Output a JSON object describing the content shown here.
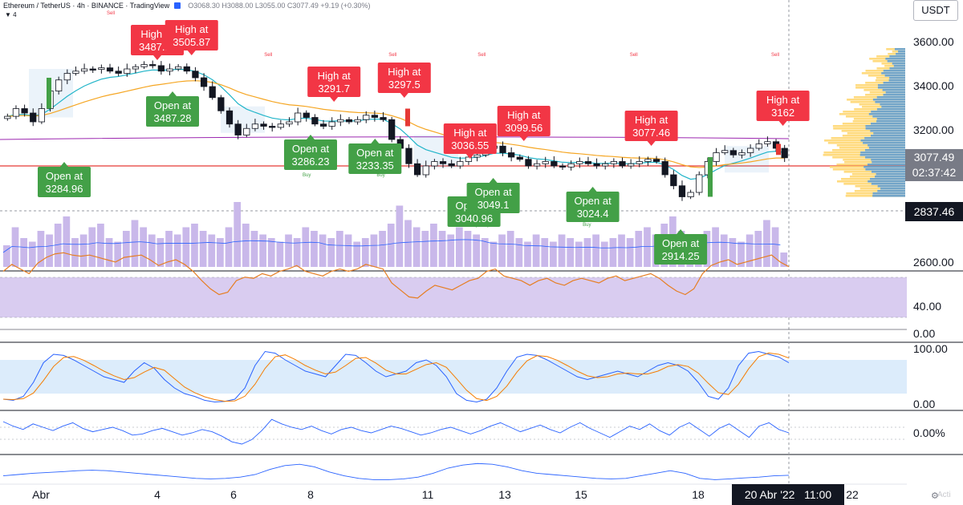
{
  "header": {
    "symbol": "Ethereum / TetherUS · 4h · BINANCE · TradingView",
    "ohlc": "O3068.30 H3088.00 L3055.00 C3077.49 +9.19 (+0.30%)",
    "indicator_count": "4"
  },
  "axis": {
    "currency": "USDT",
    "price_ticks": [
      "3600.00",
      "3400.00",
      "3200.00",
      "2600.00"
    ],
    "rsi_ticks": [
      "40.00",
      "0.00"
    ],
    "stoch_ticks": [
      "100.00",
      "0.00"
    ],
    "osc_tick": "0.00%",
    "last_price": "3077.49",
    "countdown": "02:37:42",
    "crosshair_price": "2837.46",
    "x_ticks": [
      "Abr",
      "4",
      "6",
      "8",
      "11",
      "13",
      "15",
      "18",
      "22"
    ],
    "current_date": "20 Abr '22",
    "current_time": "11:00",
    "watermark": "Acti"
  },
  "colors": {
    "up": "#26a69a",
    "down": "#ef5350",
    "high_label": "#f23645",
    "open_label": "#43a047",
    "ema_fast": "#22b5c9",
    "ema_slow": "#f5a623",
    "volume": "#c9b8ea",
    "rsi_band": "#d9ccf0",
    "stoch_band": "#dcecfb",
    "pane_line": "#2962ff"
  },
  "chart_data": {
    "type": "candlestick",
    "x_categories": [
      "Abr",
      "4",
      "6",
      "8",
      "11",
      "13",
      "15",
      "18",
      "22"
    ],
    "price_range": [
      2600,
      3650
    ],
    "last_close": 3077.49,
    "signals": [
      {
        "kind": "high",
        "label": "High at",
        "value": "3487.11",
        "x_pos": 1.0,
        "price": 3487.11
      },
      {
        "kind": "high",
        "label": "High at",
        "value": "3505.87",
        "x_pos": 1.45,
        "price": 3505.87
      },
      {
        "kind": "open",
        "label": "Open at",
        "value": "3284.96",
        "x_pos": 0.2,
        "price": 3284.96
      },
      {
        "kind": "open",
        "label": "Open at",
        "value": "3487.28",
        "x_pos": 1.2,
        "price": 3487.28
      },
      {
        "kind": "high",
        "label": "High at",
        "value": "3291.7",
        "x_pos": 3.2,
        "price": 3291.7
      },
      {
        "kind": "open",
        "label": "Open at",
        "value": "3286.23",
        "x_pos": 3.0,
        "price": 3286.23
      },
      {
        "kind": "open",
        "label": "Open at",
        "value": "3233.35",
        "x_pos": 3.55,
        "price": 3233.35
      },
      {
        "kind": "high",
        "label": "High at",
        "value": "3297.5",
        "x_pos": 3.8,
        "price": 3297.5
      },
      {
        "kind": "high",
        "label": "High at",
        "value": "3036.55",
        "x_pos": 4.55,
        "price": 3036.55
      },
      {
        "kind": "open",
        "label": "Open at",
        "value": "3040.96",
        "x_pos": 4.6,
        "price": 3040.96
      },
      {
        "kind": "open",
        "label": "Open at",
        "value": "3049.1",
        "x_pos": 4.85,
        "price": 3049.1
      },
      {
        "kind": "high",
        "label": "High at",
        "value": "3099.56",
        "x_pos": 5.25,
        "price": 3099.56
      },
      {
        "kind": "open",
        "label": "Open at",
        "value": "3024.4",
        "x_pos": 6.1,
        "price": 3024.4
      },
      {
        "kind": "high",
        "label": "High at",
        "value": "3077.46",
        "x_pos": 6.6,
        "price": 3077.46
      },
      {
        "kind": "open",
        "label": "Open at",
        "value": "2914.25",
        "x_pos": 6.85,
        "price": 2914.25
      },
      {
        "kind": "high",
        "label": "High at",
        "value": "3162",
        "x_pos": 7.55,
        "price": 3162
      }
    ],
    "sell_markers": [
      0.6,
      2.45,
      3.7,
      4.7,
      6.45,
      7.5
    ],
    "buy_markers": [
      2.95,
      3.6,
      4.6,
      4.75,
      6.05
    ],
    "marker_text": {
      "sell": "Sell",
      "buy": "Buy"
    },
    "close_series": [
      3265,
      3300,
      3280,
      3240,
      3300,
      3380,
      3430,
      3460,
      3470,
      3480,
      3478,
      3485,
      3470,
      3460,
      3480,
      3490,
      3500,
      3495,
      3470,
      3480,
      3490,
      3470,
      3440,
      3400,
      3350,
      3290,
      3230,
      3180,
      3210,
      3230,
      3220,
      3215,
      3230,
      3240,
      3280,
      3260,
      3230,
      3220,
      3240,
      3250,
      3240,
      3250,
      3270,
      3260,
      3250,
      3160,
      3120,
      3050,
      3000,
      3040,
      3060,
      3050,
      3040,
      3060,
      3080,
      3090,
      3120,
      3130,
      3100,
      3080,
      3070,
      3040,
      3050,
      3060,
      3040,
      3035,
      3050,
      3060,
      3050,
      3040,
      3050,
      3060,
      3040,
      3050,
      3060,
      3070,
      3060,
      3000,
      2950,
      2900,
      2920,
      3000,
      3060,
      3100,
      3110,
      3090,
      3100,
      3120,
      3140,
      3150,
      3120,
      3077
    ],
    "volume_series": [
      30,
      55,
      40,
      35,
      50,
      45,
      60,
      70,
      40,
      45,
      55,
      60,
      40,
      35,
      50,
      65,
      55,
      45,
      40,
      50,
      45,
      55,
      60,
      50,
      45,
      40,
      55,
      90,
      60,
      50,
      45,
      40,
      35,
      45,
      40,
      55,
      50,
      45,
      40,
      50,
      45,
      35,
      40,
      45,
      50,
      60,
      85,
      65,
      55,
      50,
      60,
      50,
      45,
      55,
      50,
      45,
      40,
      35,
      45,
      50,
      40,
      35,
      45,
      40,
      35,
      45,
      40,
      35,
      40,
      45,
      35,
      40,
      45,
      40,
      50,
      55,
      45,
      60,
      70,
      50,
      40,
      45,
      50,
      55,
      45,
      40,
      35,
      45,
      50,
      65,
      55,
      20
    ],
    "rsi_series": [
      50,
      56,
      52,
      48,
      57,
      62,
      65,
      66,
      64,
      63,
      64,
      62,
      60,
      58,
      62,
      63,
      64,
      60,
      55,
      58,
      60,
      56,
      50,
      42,
      35,
      30,
      32,
      42,
      45,
      44,
      48,
      46,
      50,
      52,
      55,
      50,
      48,
      46,
      50,
      52,
      50,
      52,
      56,
      54,
      52,
      40,
      34,
      28,
      27,
      33,
      38,
      36,
      34,
      38,
      42,
      44,
      50,
      52,
      46,
      44,
      42,
      38,
      42,
      44,
      40,
      38,
      42,
      44,
      42,
      40,
      44,
      46,
      42,
      44,
      46,
      48,
      44,
      38,
      33,
      30,
      35,
      48,
      55,
      58,
      60,
      56,
      58,
      60,
      62,
      64,
      58,
      54
    ],
    "stoch_k": [
      10,
      8,
      15,
      40,
      75,
      90,
      88,
      80,
      70,
      60,
      50,
      45,
      40,
      60,
      75,
      65,
      45,
      30,
      20,
      15,
      8,
      5,
      6,
      10,
      30,
      70,
      95,
      92,
      80,
      70,
      60,
      55,
      50,
      70,
      90,
      88,
      75,
      60,
      50,
      55,
      60,
      75,
      80,
      70,
      50,
      20,
      8,
      5,
      10,
      30,
      60,
      85,
      90,
      88,
      80,
      70,
      60,
      50,
      45,
      50,
      55,
      60,
      55,
      50,
      60,
      70,
      75,
      70,
      60,
      40,
      15,
      10,
      30,
      70,
      92,
      95,
      90,
      85,
      75
    ],
    "osc_series": [
      1.0,
      0.6,
      0.3,
      0.8,
      0.5,
      0.2,
      0.6,
      0.9,
      0.4,
      0.1,
      0.3,
      0.5,
      0.2,
      -0.2,
      -0.1,
      0.2,
      0.4,
      0.1,
      -0.2,
      0.0,
      0.3,
      0.1,
      -0.3,
      -0.8,
      -1.0,
      -0.6,
      0.2,
      1.2,
      0.8,
      0.5,
      0.3,
      0.6,
      0.2,
      -0.1,
      0.3,
      0.5,
      0.2,
      0.0,
      0.3,
      0.6,
      0.4,
      0.1,
      -0.2,
      0.0,
      0.3,
      0.5,
      0.2,
      -0.1,
      0.2,
      0.6,
      0.9,
      0.5,
      0.1,
      0.4,
      0.7,
      0.3,
      0.0,
      0.5,
      0.9,
      0.4,
      0.0,
      -0.4,
      0.1,
      0.6,
      0.3,
      0.8,
      0.2,
      -0.2,
      0.5,
      0.9,
      0.3,
      -0.3,
      0.4,
      0.8,
      0.2,
      -0.4,
      0.6,
      0.9,
      0.3,
      0.0
    ],
    "trend_series": [
      0.2,
      0.25,
      0.3,
      0.33,
      0.36,
      0.4,
      0.42,
      0.4,
      0.35,
      0.3,
      0.25,
      0.2,
      0.15,
      0.1,
      0.08,
      0.1,
      0.15,
      0.25,
      0.45,
      0.6,
      0.65,
      0.55,
      0.35,
      0.2,
      0.1,
      0.05,
      0.05,
      0.08,
      0.15,
      0.3,
      0.5,
      0.62,
      0.68,
      0.65,
      0.55,
      0.4,
      0.3,
      0.25,
      0.2,
      0.15,
      0.1,
      0.08,
      0.1,
      0.2,
      0.3,
      0.4,
      0.3,
      0.1,
      0.05,
      0.08,
      0.12,
      0.15,
      0.2,
      0.22
    ]
  }
}
